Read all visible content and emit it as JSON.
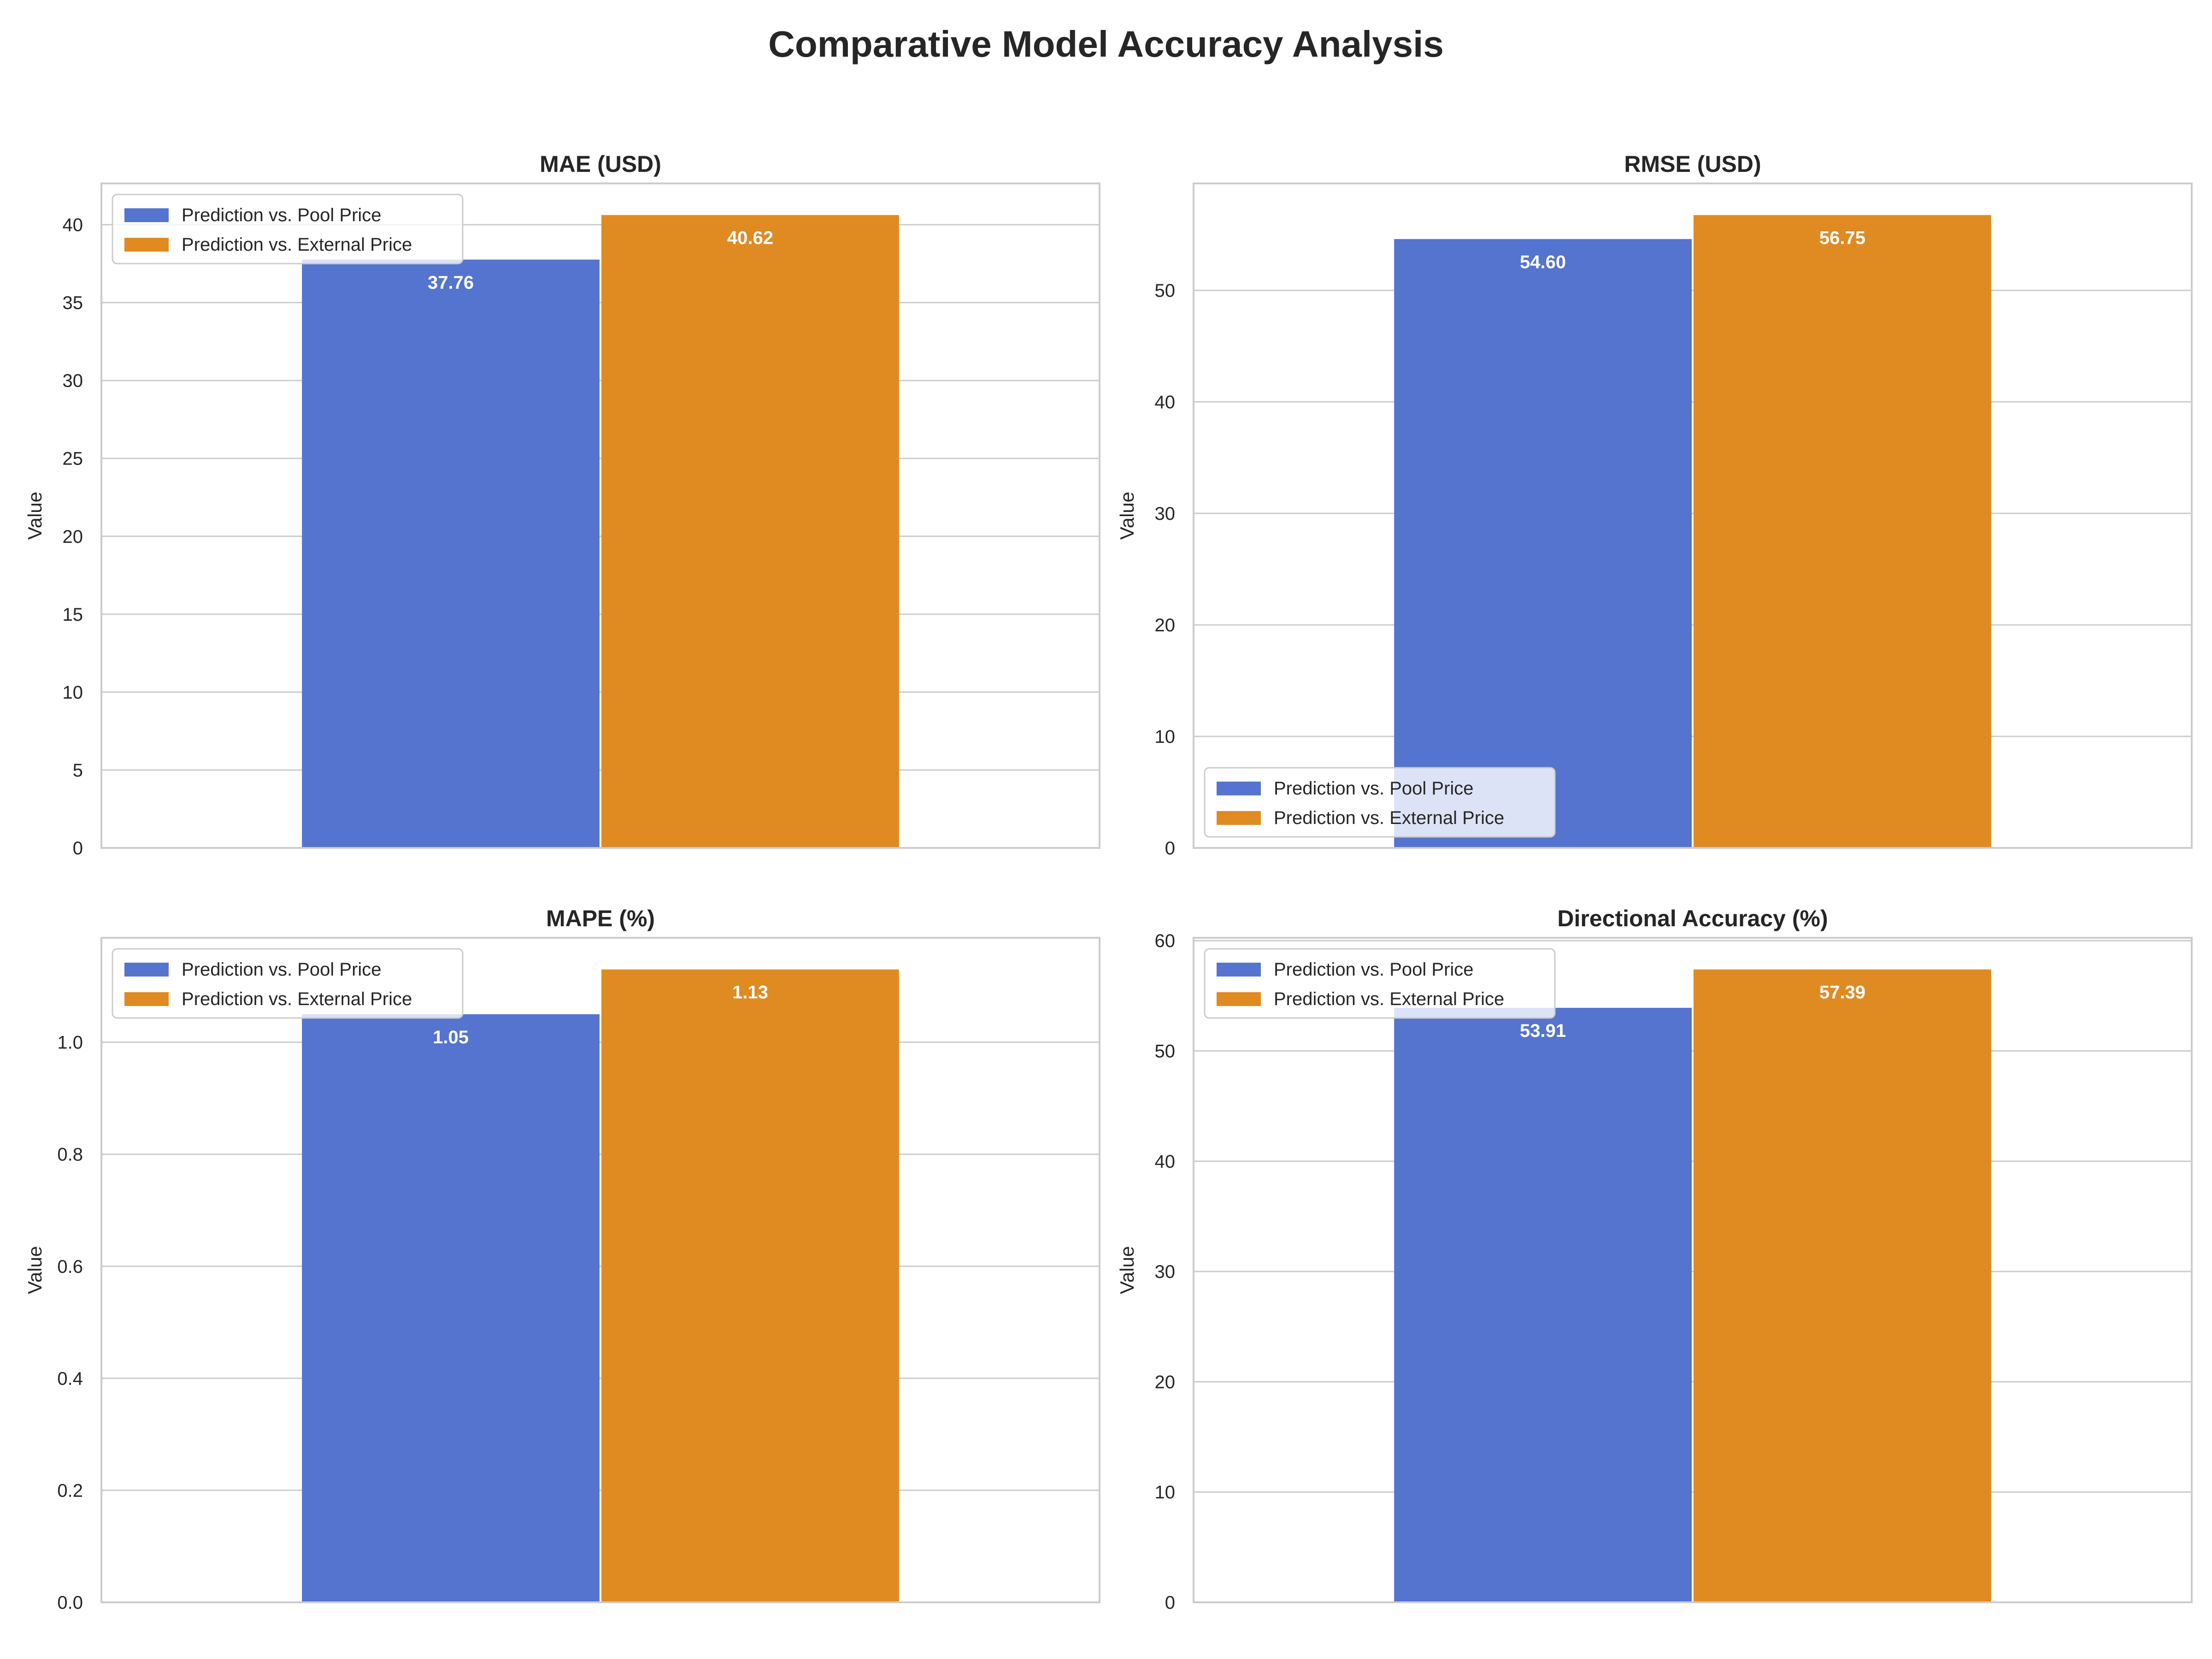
{
  "figure": {
    "title": "Comparative Model Accuracy Analysis"
  },
  "colors": {
    "series_pool": "#5474cf",
    "series_external": "#e08a22",
    "grid": "#cccccc",
    "axis_text": "#262626"
  },
  "chart_data": [
    {
      "type": "bar",
      "title": "MAE (USD)",
      "xlabel": "",
      "ylabel": "Value",
      "categories": [
        ""
      ],
      "series": [
        {
          "name": "Prediction vs. Pool Price",
          "values": [
            37.76
          ]
        },
        {
          "name": "Prediction vs. External Price",
          "values": [
            40.62
          ]
        }
      ],
      "data_labels": [
        "37.76",
        "40.62"
      ],
      "ylim": [
        0,
        42.65
      ],
      "yticks": [
        0,
        5,
        10,
        15,
        20,
        25,
        30,
        35,
        40
      ],
      "ytick_labels": [
        "0",
        "5",
        "10",
        "15",
        "20",
        "25",
        "30",
        "35",
        "40"
      ],
      "grid": true,
      "legend": "upper left"
    },
    {
      "type": "bar",
      "title": "RMSE (USD)",
      "xlabel": "",
      "ylabel": "Value",
      "categories": [
        ""
      ],
      "series": [
        {
          "name": "Prediction vs. Pool Price",
          "values": [
            54.6
          ]
        },
        {
          "name": "Prediction vs. External Price",
          "values": [
            56.75
          ]
        }
      ],
      "data_labels": [
        "54.60",
        "56.75"
      ],
      "ylim": [
        0,
        59.59
      ],
      "yticks": [
        0,
        10,
        20,
        30,
        40,
        50
      ],
      "ytick_labels": [
        "0",
        "10",
        "20",
        "30",
        "40",
        "50"
      ],
      "grid": true,
      "legend": "lower left"
    },
    {
      "type": "bar",
      "title": "MAPE (%)",
      "xlabel": "",
      "ylabel": "Value",
      "categories": [
        ""
      ],
      "series": [
        {
          "name": "Prediction vs. Pool Price",
          "values": [
            1.05
          ]
        },
        {
          "name": "Prediction vs. External Price",
          "values": [
            1.13
          ]
        }
      ],
      "data_labels": [
        "1.05",
        "1.13"
      ],
      "ylim": [
        0,
        1.1865
      ],
      "yticks": [
        0,
        0.2,
        0.4,
        0.6,
        0.8,
        1.0
      ],
      "ytick_labels": [
        "0.0",
        "0.2",
        "0.4",
        "0.6",
        "0.8",
        "1.0"
      ],
      "grid": true,
      "legend": "upper left"
    },
    {
      "type": "bar",
      "title": "Directional Accuracy (%)",
      "xlabel": "",
      "ylabel": "Value",
      "categories": [
        ""
      ],
      "series": [
        {
          "name": "Prediction vs. Pool Price",
          "values": [
            53.91
          ]
        },
        {
          "name": "Prediction vs. External Price",
          "values": [
            57.39
          ]
        }
      ],
      "data_labels": [
        "53.91",
        "57.39"
      ],
      "ylim": [
        0,
        60.26
      ],
      "yticks": [
        0,
        10,
        20,
        30,
        40,
        50,
        60
      ],
      "ytick_labels": [
        "0",
        "10",
        "20",
        "30",
        "40",
        "50",
        "60"
      ],
      "grid": true,
      "legend": "upper left"
    }
  ]
}
